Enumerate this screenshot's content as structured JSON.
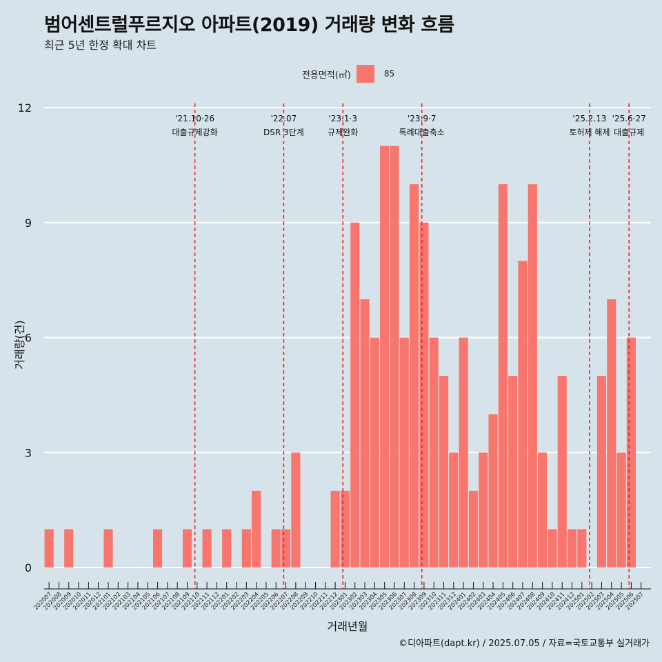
{
  "title": "범어센트럴푸르지오 아파트(2019) 거래량 변화 흐름",
  "subtitle": "최근 5년 한정 확대 차트",
  "caption": "©디아파트(dapt.kr) / 2025.07.05 / 자료=국토교통부 실거래가",
  "colors": {
    "background": "#d6e3ea",
    "bar": "#f8766d",
    "grid": "#ffffff",
    "event_line": "#e8241d"
  },
  "chart_data": {
    "type": "bar",
    "xlabel": "거래년월",
    "ylabel": "거래량(건)",
    "ylim": [
      0,
      12
    ],
    "yticks": [
      0,
      3,
      6,
      9,
      12
    ],
    "legend": {
      "title": "전용면적(㎡)",
      "position": "top",
      "entries": [
        "85"
      ]
    },
    "categories": [
      "202007",
      "202008",
      "202009",
      "202010",
      "202011",
      "202012",
      "202101",
      "202102",
      "202103",
      "202104",
      "202105",
      "202106",
      "202107",
      "202108",
      "202109",
      "202110",
      "202111",
      "202112",
      "202201",
      "202202",
      "202203",
      "202204",
      "202205",
      "202206",
      "202207",
      "202208",
      "202209",
      "202210",
      "202211",
      "202212",
      "202301",
      "202302",
      "202303",
      "202304",
      "202305",
      "202306",
      "202307",
      "202308",
      "202309",
      "202310",
      "202311",
      "202312",
      "202401",
      "202402",
      "202403",
      "202404",
      "202405",
      "202406",
      "202407",
      "202408",
      "202409",
      "202410",
      "202411",
      "202412",
      "202501",
      "202502",
      "202503",
      "202504",
      "202505",
      "202506",
      "202507"
    ],
    "series": [
      {
        "name": "85",
        "values": [
          1,
          0,
          1,
          0,
          0,
          0,
          1,
          0,
          0,
          0,
          0,
          1,
          0,
          0,
          1,
          0,
          1,
          0,
          1,
          0,
          1,
          2,
          0,
          1,
          1,
          3,
          0,
          0,
          0,
          2,
          2,
          9,
          7,
          6,
          11,
          11,
          6,
          10,
          9,
          6,
          5,
          3,
          6,
          2,
          3,
          4,
          10,
          5,
          8,
          10,
          3,
          1,
          5,
          1,
          1,
          0,
          5,
          7,
          3,
          6,
          0
        ]
      }
    ],
    "events": [
      {
        "date": "'21.10·26",
        "label": "대출규제강화",
        "at": "202110"
      },
      {
        "date": "'22.07",
        "label": "DSR 3단계",
        "at": "202207"
      },
      {
        "date": "'23.1·3",
        "label": "규제완화",
        "at": "202301"
      },
      {
        "date": "'23.9·7",
        "label": "특례대출축소",
        "at": "202309"
      },
      {
        "date": "'25.2.13",
        "label": "토허제 해제",
        "at": "202502"
      },
      {
        "date": "'25.6·27",
        "label": "대출규제",
        "at": "202506"
      }
    ]
  }
}
